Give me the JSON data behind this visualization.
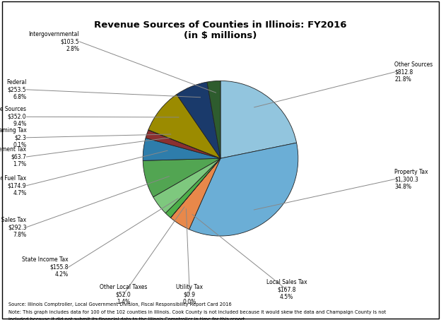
{
  "title": "Revenue Sources of Counties in Illinois: FY2016\n(in $ millions)",
  "ordered_slices": [
    {
      "label": "Other Sources",
      "value": 812.8,
      "pct": "21.8%",
      "color": "#92C5DE"
    },
    {
      "label": "Property Tax",
      "value": 1300.3,
      "pct": "34.8%",
      "color": "#6BAED6"
    },
    {
      "label": "Local Sales Tax",
      "value": 167.8,
      "pct": "4.5%",
      "color": "#F4A460"
    },
    {
      "label": "Utility Tax",
      "value": 0.9,
      "pct": "0.0%",
      "color": "#FFD700"
    },
    {
      "label": "Other Local Taxes",
      "value": 52.0,
      "pct": "1.4%",
      "color": "#5BA35B"
    },
    {
      "label": "State Income Tax",
      "value": 155.8,
      "pct": "4.2%",
      "color": "#7BC67B"
    },
    {
      "label": "State Sales Tax",
      "value": 292.3,
      "pct": "7.8%",
      "color": "#4DAF4A"
    },
    {
      "label": "State Motor Fuel Tax",
      "value": 174.9,
      "pct": "4.7%",
      "color": "#2E86AB"
    },
    {
      "label": "State Replacement Tax",
      "value": 63.7,
      "pct": "1.7%",
      "color": "#8B3A3A"
    },
    {
      "label": "State Gaming Tax",
      "value": 2.3,
      "pct": "0.1%",
      "color": "#B8860B"
    },
    {
      "label": "Other State Sources",
      "value": 352.0,
      "pct": "9.4%",
      "color": "#B8860B"
    },
    {
      "label": "Federal",
      "value": 253.5,
      "pct": "6.8%",
      "color": "#1F4E79"
    },
    {
      "label": "Intergovernmental",
      "value": 103.5,
      "pct": "2.8%",
      "color": "#2E6B2E"
    }
  ],
  "footnote1": "Source: Illinois Comptroller, Local Government Division, Fiscal Responsibility Report Card 2016",
  "footnote2": "Note: This graph includes data for 100 of the 102 counties in Illinois. Cook County is not included because it would skew the data and Champaign County is not",
  "footnote3": "included because it did not submit its financial data to the Illinois Comptroller in time for this report.",
  "bg_color": "#FFFFFF"
}
